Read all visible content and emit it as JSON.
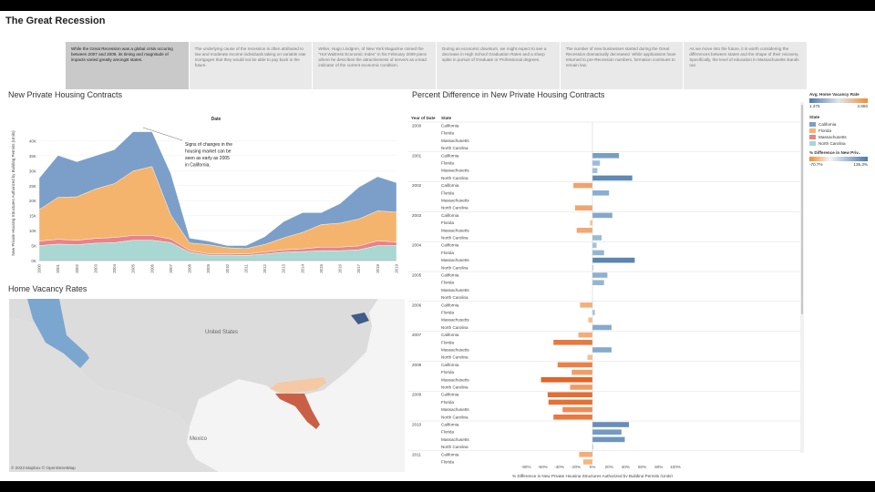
{
  "dashboard": {
    "title": "The Great Recession"
  },
  "story_points": [
    "While the Great Recession was a global crisis occuring between 2007 and 2009, its timing and magnitude of impacts varied greatly amongst states.",
    "The underlying cause of the recession is often attributed to low and moderate income individuals taking on variable rate mortgages that they would not be able to pay back in the future.",
    "Writer, Hugo Lindgren, of New York Magazine coined the \"Hot Waitress Economic Index\" in his February 2009 piece where he describes the attractiveness of servers as a lead indicator of the current economic condition.",
    "During an economic downturn, we might expect to see a decrease in High School Graduation Rates and a sharp spike in pursuit of Graduate or Professional degrees.",
    "The number of new businesses started during the Great Recession dramatically decreased. While applications have returned to pre-Recession numbers, formation continues to remain low.",
    "As we move into the future, it is worth considering the differences between states and the shape of their recovery. Specifically, the level of education in Massachusetts stands out."
  ],
  "colors": {
    "california": "#7b9fc9",
    "florida": "#f4b46e",
    "massachusetts": "#e8838a",
    "north_carolina": "#a9d7d1",
    "positive": "#4e79a7",
    "negative": "#f28e2b"
  },
  "area_chart": {
    "title": "New Private Housing Contracts",
    "column_header": "Date",
    "annotation": "Signs of changes in the housing market can be seen as early as 2005 in California.",
    "ylabel": "New Private Housing Structures Authorized by Building Permits (Units)"
  },
  "map": {
    "title": "Home Vacancy Rates",
    "labels": {
      "us": "United States",
      "mexico": "Mexico"
    },
    "copyright": "© 2023 Mapbox © OpenStreetMap"
  },
  "bar_chart": {
    "title": "Percent Difference in New Private Housing Contracts",
    "headers": {
      "year": "Year of Date",
      "state": "State"
    },
    "xlabel": "% Difference in New Private Housing Structures Authorized by Building Permits (Units)"
  },
  "legends": {
    "vacancy": {
      "title": "Avg. Home Vacancy Rate",
      "min": "1.475",
      "max": "4.650"
    },
    "state": {
      "title": "State"
    },
    "pct": {
      "title": "% Difference in New Priv..",
      "min": "-70.7%",
      "max": "135.3%"
    }
  },
  "chart_data": [
    {
      "type": "area",
      "title": "New Private Housing Contracts",
      "xlabel": "Date",
      "ylabel": "New Private Housing Structures Authorized by Building Permits (Units)",
      "ylim": [
        0,
        45000
      ],
      "yticks": [
        "0K",
        "5K",
        "10K",
        "15K",
        "20K",
        "25K",
        "30K",
        "35K",
        "40K"
      ],
      "stacked": true,
      "categories": [
        "2000",
        "2001",
        "2002",
        "2003",
        "2004",
        "2005",
        "2006",
        "2007",
        "2008",
        "2009",
        "2010",
        "2011",
        "2012",
        "2013",
        "2014",
        "2015",
        "2016",
        "2017",
        "2018",
        "2019"
      ],
      "series": [
        {
          "name": "North Carolina",
          "values": [
            5000,
            5500,
            5300,
            5800,
            6000,
            6800,
            6800,
            6000,
            2800,
            1800,
            1800,
            1700,
            2200,
            2800,
            3000,
            3300,
            3300,
            3600,
            5000,
            5000
          ]
        },
        {
          "name": "Massachusetts",
          "values": [
            1500,
            1600,
            1500,
            1600,
            1700,
            1600,
            1600,
            1200,
            600,
            500,
            500,
            500,
            700,
            800,
            900,
            1200,
            1200,
            1300,
            1600,
            1200
          ]
        },
        {
          "name": "Florida",
          "values": [
            10500,
            14000,
            14500,
            16500,
            18000,
            21500,
            23000,
            8000,
            2500,
            3000,
            2000,
            1800,
            2500,
            4000,
            5500,
            7500,
            8000,
            9000,
            10000,
            10000
          ]
        },
        {
          "name": "California",
          "values": [
            10500,
            14000,
            11700,
            11100,
            11300,
            13100,
            11600,
            13800,
            1600,
            1200,
            700,
            1000,
            2600,
            5400,
            6600,
            4000,
            6500,
            10600,
            11400,
            9800
          ]
        }
      ]
    },
    {
      "type": "bar",
      "title": "Percent Difference in New Private Housing Contracts",
      "xlabel": "% Difference in New Private Housing Structures Authorized by Building Permits (Units)",
      "xlim": [
        -80,
        100
      ],
      "xticks": [
        "-80%",
        "-60%",
        "-40%",
        "-20%",
        "0%",
        "20%",
        "40%",
        "60%",
        "80%",
        "100%"
      ],
      "groups": [
        {
          "year": "2000",
          "rows": [
            [
              "California",
              0
            ],
            [
              "Florida",
              0
            ],
            [
              "Massachusetts",
              0
            ],
            [
              "North Carolina",
              0
            ]
          ]
        },
        {
          "year": "2001",
          "rows": [
            [
              "California",
              32
            ],
            [
              "Florida",
              9
            ],
            [
              "Massachusetts",
              6
            ],
            [
              "North Carolina",
              48
            ]
          ]
        },
        {
          "year": "2002",
          "rows": [
            [
              "California",
              -23
            ],
            [
              "Florida",
              20
            ],
            [
              "Massachusetts",
              0
            ],
            [
              "North Carolina",
              -21
            ]
          ]
        },
        {
          "year": "2003",
          "rows": [
            [
              "California",
              24
            ],
            [
              "Florida",
              -3
            ],
            [
              "Massachusetts",
              -19
            ],
            [
              "North Carolina",
              11
            ]
          ]
        },
        {
          "year": "2004",
          "rows": [
            [
              "California",
              5
            ],
            [
              "Florida",
              14
            ],
            [
              "Massachusetts",
              51
            ],
            [
              "North Carolina",
              1
            ]
          ]
        },
        {
          "year": "2005",
          "rows": [
            [
              "California",
              18
            ],
            [
              "Florida",
              14
            ],
            [
              "Massachusetts",
              0
            ],
            [
              "North Carolina",
              0
            ]
          ]
        },
        {
          "year": "2006",
          "rows": [
            [
              "California",
              -15
            ],
            [
              "Florida",
              3
            ],
            [
              "Massachusetts",
              -5
            ],
            [
              "North Carolina",
              23
            ]
          ]
        },
        {
          "year": "2007",
          "rows": [
            [
              "California",
              -17
            ],
            [
              "Florida",
              -47
            ],
            [
              "Massachusetts",
              23
            ],
            [
              "North Carolina",
              -6
            ]
          ]
        },
        {
          "year": "2008",
          "rows": [
            [
              "California",
              -42
            ],
            [
              "Florida",
              -25
            ],
            [
              "Massachusetts",
              -62
            ],
            [
              "North Carolina",
              -27
            ]
          ]
        },
        {
          "year": "2009",
          "rows": [
            [
              "California",
              -54
            ],
            [
              "Florida",
              -53
            ],
            [
              "Massachusetts",
              -36
            ],
            [
              "North Carolina",
              -47
            ]
          ]
        },
        {
          "year": "2010",
          "rows": [
            [
              "California",
              44
            ],
            [
              "Florida",
              35
            ],
            [
              "Massachusetts",
              39
            ],
            [
              "North Carolina",
              1
            ]
          ]
        },
        {
          "year": "2011",
          "rows": [
            [
              "California",
              -16
            ],
            [
              "Florida",
              -11
            ]
          ]
        }
      ]
    }
  ]
}
